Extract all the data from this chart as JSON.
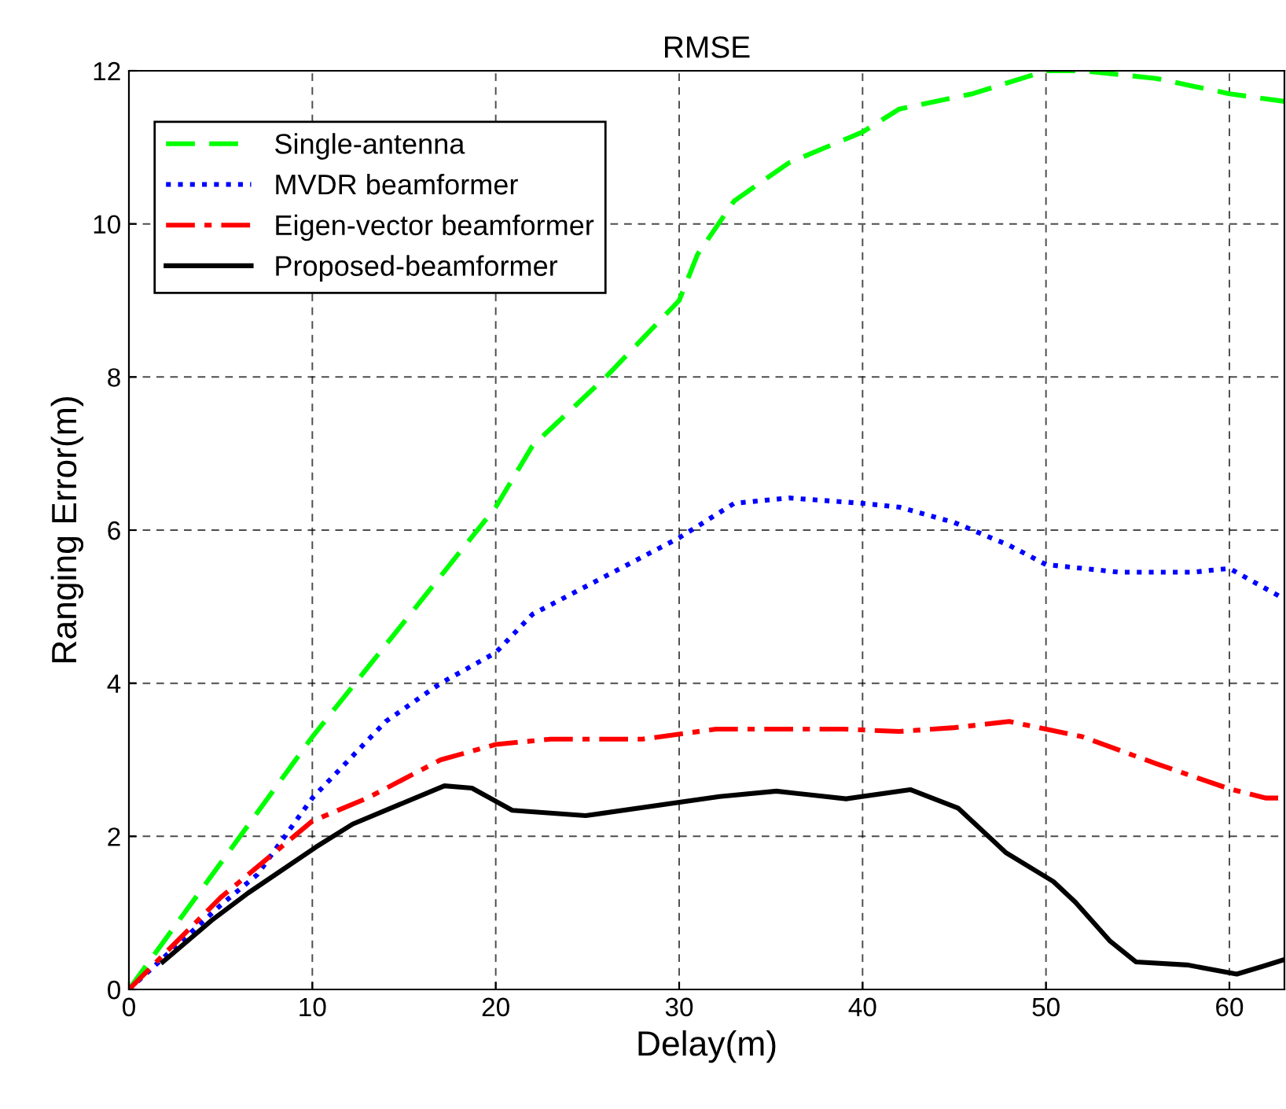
{
  "chart_data": {
    "type": "line",
    "title": "RMSE",
    "xlabel": "Delay(m)",
    "ylabel": "Ranging Error(m)",
    "xlim": [
      0,
      63
    ],
    "ylim": [
      0,
      12
    ],
    "xticks": [
      0,
      10,
      20,
      30,
      40,
      50,
      60
    ],
    "yticks": [
      0,
      2,
      4,
      6,
      8,
      10,
      12
    ],
    "grid": true,
    "legend": "top left",
    "marker": "none",
    "series": [
      {
        "name": "Single-antenna",
        "color": "#00ff00",
        "line_style": "dashed",
        "x": [
          0,
          10,
          20,
          22,
          26,
          28,
          30,
          31,
          33,
          36,
          40,
          42,
          46,
          50,
          52,
          56,
          60,
          63
        ],
        "values": [
          0,
          3.3,
          6.3,
          7.1,
          8,
          8.5,
          9,
          9.6,
          10.3,
          10.8,
          11.2,
          11.5,
          11.7,
          12,
          12,
          11.9,
          11.7,
          11.6
        ]
      },
      {
        "name": "MVDR beamformer",
        "color": "#0000ff",
        "line_style": "dotted",
        "x": [
          0,
          5,
          7,
          10,
          14,
          17,
          20,
          22,
          26,
          30,
          33,
          36,
          40,
          42,
          45,
          48,
          50,
          54,
          58,
          60,
          63
        ],
        "values": [
          0,
          1.1,
          1.5,
          2.5,
          3.5,
          4,
          4.4,
          4.9,
          5.4,
          5.9,
          6.35,
          6.42,
          6.35,
          6.3,
          6.1,
          5.8,
          5.55,
          5.45,
          5.45,
          5.5,
          5.1
        ]
      },
      {
        "name": "Eigen-vector beamformer",
        "color": "#ff0000",
        "line_style": "dashdot",
        "x": [
          0,
          5,
          10,
          13,
          17,
          20,
          23,
          28,
          32,
          39,
          42,
          45,
          48,
          52,
          56,
          60,
          62,
          63
        ],
        "values": [
          0,
          1.2,
          2.2,
          2.5,
          3.0,
          3.2,
          3.27,
          3.27,
          3.4,
          3.4,
          3.37,
          3.42,
          3.5,
          3.3,
          2.95,
          2.62,
          2.5,
          2.5
        ]
      },
      {
        "name": "Proposed-beamformer",
        "color": "#000000",
        "line_style": "solid",
        "x": [
          1.85,
          4.5,
          6.5,
          10.2,
          12.2,
          17.2,
          18.7,
          20.9,
          24.9,
          32.2,
          35.3,
          39.1,
          42.6,
          45.2,
          47.8,
          50.4,
          51.6,
          53.5,
          54.9,
          57.7,
          60.4,
          61.8,
          63
        ],
        "values": [
          0.36,
          0.9,
          1.26,
          1.86,
          2.16,
          2.66,
          2.63,
          2.34,
          2.27,
          2.52,
          2.59,
          2.49,
          2.61,
          2.37,
          1.79,
          1.41,
          1.14,
          0.63,
          0.36,
          0.32,
          0.2,
          0.3,
          0.39
        ]
      }
    ]
  }
}
